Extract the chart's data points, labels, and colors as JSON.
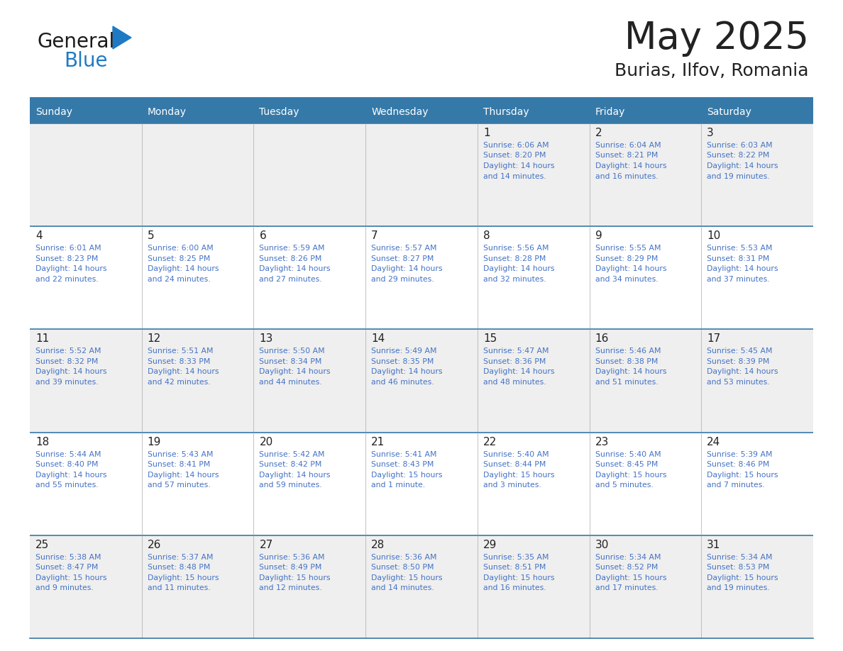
{
  "title": "May 2025",
  "subtitle": "Burias, Ilfov, Romania",
  "header_color": "#3579A8",
  "header_text_color": "#FFFFFF",
  "day_names": [
    "Sunday",
    "Monday",
    "Tuesday",
    "Wednesday",
    "Thursday",
    "Friday",
    "Saturday"
  ],
  "row_colors": [
    "#EFEFEF",
    "#FFFFFF",
    "#EFEFEF",
    "#FFFFFF",
    "#EFEFEF"
  ],
  "white_color": "#FFFFFF",
  "grid_line_color": "#AAAAAA",
  "top_line_color": "#3579A8",
  "text_color_dark": "#222222",
  "text_color_blue": "#2E75B6",
  "text_color_info": "#4472C4",
  "calendar_data": [
    [
      null,
      null,
      null,
      null,
      {
        "day": 1,
        "sunrise": "6:06 AM",
        "sunset": "8:20 PM",
        "daylight": "14 hours\nand 14 minutes"
      },
      {
        "day": 2,
        "sunrise": "6:04 AM",
        "sunset": "8:21 PM",
        "daylight": "14 hours\nand 16 minutes"
      },
      {
        "day": 3,
        "sunrise": "6:03 AM",
        "sunset": "8:22 PM",
        "daylight": "14 hours\nand 19 minutes"
      }
    ],
    [
      {
        "day": 4,
        "sunrise": "6:01 AM",
        "sunset": "8:23 PM",
        "daylight": "14 hours\nand 22 minutes"
      },
      {
        "day": 5,
        "sunrise": "6:00 AM",
        "sunset": "8:25 PM",
        "daylight": "14 hours\nand 24 minutes"
      },
      {
        "day": 6,
        "sunrise": "5:59 AM",
        "sunset": "8:26 PM",
        "daylight": "14 hours\nand 27 minutes"
      },
      {
        "day": 7,
        "sunrise": "5:57 AM",
        "sunset": "8:27 PM",
        "daylight": "14 hours\nand 29 minutes"
      },
      {
        "day": 8,
        "sunrise": "5:56 AM",
        "sunset": "8:28 PM",
        "daylight": "14 hours\nand 32 minutes"
      },
      {
        "day": 9,
        "sunrise": "5:55 AM",
        "sunset": "8:29 PM",
        "daylight": "14 hours\nand 34 minutes"
      },
      {
        "day": 10,
        "sunrise": "5:53 AM",
        "sunset": "8:31 PM",
        "daylight": "14 hours\nand 37 minutes"
      }
    ],
    [
      {
        "day": 11,
        "sunrise": "5:52 AM",
        "sunset": "8:32 PM",
        "daylight": "14 hours\nand 39 minutes"
      },
      {
        "day": 12,
        "sunrise": "5:51 AM",
        "sunset": "8:33 PM",
        "daylight": "14 hours\nand 42 minutes"
      },
      {
        "day": 13,
        "sunrise": "5:50 AM",
        "sunset": "8:34 PM",
        "daylight": "14 hours\nand 44 minutes"
      },
      {
        "day": 14,
        "sunrise": "5:49 AM",
        "sunset": "8:35 PM",
        "daylight": "14 hours\nand 46 minutes"
      },
      {
        "day": 15,
        "sunrise": "5:47 AM",
        "sunset": "8:36 PM",
        "daylight": "14 hours\nand 48 minutes"
      },
      {
        "day": 16,
        "sunrise": "5:46 AM",
        "sunset": "8:38 PM",
        "daylight": "14 hours\nand 51 minutes"
      },
      {
        "day": 17,
        "sunrise": "5:45 AM",
        "sunset": "8:39 PM",
        "daylight": "14 hours\nand 53 minutes"
      }
    ],
    [
      {
        "day": 18,
        "sunrise": "5:44 AM",
        "sunset": "8:40 PM",
        "daylight": "14 hours\nand 55 minutes"
      },
      {
        "day": 19,
        "sunrise": "5:43 AM",
        "sunset": "8:41 PM",
        "daylight": "14 hours\nand 57 minutes"
      },
      {
        "day": 20,
        "sunrise": "5:42 AM",
        "sunset": "8:42 PM",
        "daylight": "14 hours\nand 59 minutes"
      },
      {
        "day": 21,
        "sunrise": "5:41 AM",
        "sunset": "8:43 PM",
        "daylight": "15 hours\nand 1 minute"
      },
      {
        "day": 22,
        "sunrise": "5:40 AM",
        "sunset": "8:44 PM",
        "daylight": "15 hours\nand 3 minutes"
      },
      {
        "day": 23,
        "sunrise": "5:40 AM",
        "sunset": "8:45 PM",
        "daylight": "15 hours\nand 5 minutes"
      },
      {
        "day": 24,
        "sunrise": "5:39 AM",
        "sunset": "8:46 PM",
        "daylight": "15 hours\nand 7 minutes"
      }
    ],
    [
      {
        "day": 25,
        "sunrise": "5:38 AM",
        "sunset": "8:47 PM",
        "daylight": "15 hours\nand 9 minutes"
      },
      {
        "day": 26,
        "sunrise": "5:37 AM",
        "sunset": "8:48 PM",
        "daylight": "15 hours\nand 11 minutes"
      },
      {
        "day": 27,
        "sunrise": "5:36 AM",
        "sunset": "8:49 PM",
        "daylight": "15 hours\nand 12 minutes"
      },
      {
        "day": 28,
        "sunrise": "5:36 AM",
        "sunset": "8:50 PM",
        "daylight": "15 hours\nand 14 minutes"
      },
      {
        "day": 29,
        "sunrise": "5:35 AM",
        "sunset": "8:51 PM",
        "daylight": "15 hours\nand 16 minutes"
      },
      {
        "day": 30,
        "sunrise": "5:34 AM",
        "sunset": "8:52 PM",
        "daylight": "15 hours\nand 17 minutes"
      },
      {
        "day": 31,
        "sunrise": "5:34 AM",
        "sunset": "8:53 PM",
        "daylight": "15 hours\nand 19 minutes"
      }
    ]
  ],
  "logo_text1": "General",
  "logo_text2": "Blue",
  "logo_text1_color": "#1A1A1A",
  "logo_text2_color": "#1F7AC4",
  "logo_triangle_color": "#1F7AC4",
  "figsize": [
    11.88,
    9.18
  ],
  "dpi": 100
}
